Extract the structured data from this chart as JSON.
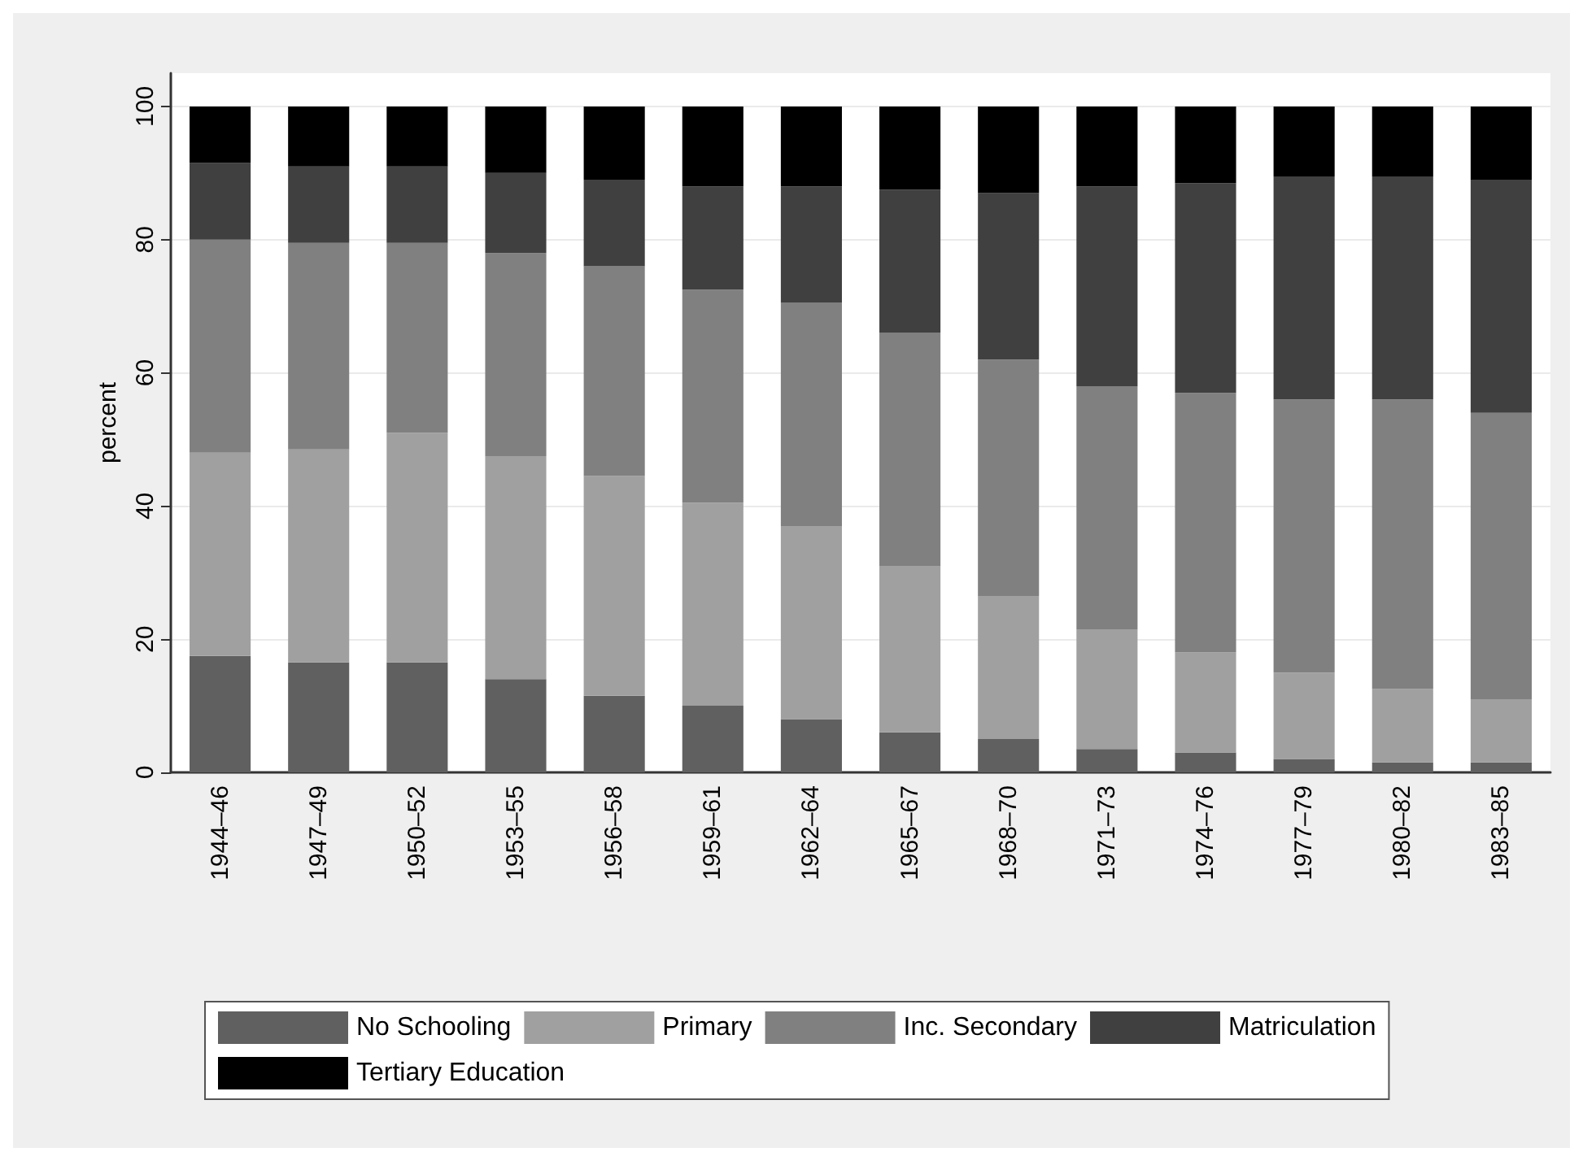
{
  "chart_data": {
    "type": "bar",
    "stacked": true,
    "ylabel": "percent",
    "categories": [
      "1944–46",
      "1947–49",
      "1950–52",
      "1953–55",
      "1956–58",
      "1959–61",
      "1962–64",
      "1965–67",
      "1968–70",
      "1971–73",
      "1974–76",
      "1977–79",
      "1980–82",
      "1983–85"
    ],
    "series": [
      {
        "name": "No Schooling",
        "color": "#606060",
        "values": [
          17.5,
          16.5,
          16.5,
          14,
          11.5,
          10,
          8,
          6,
          5,
          3.5,
          3,
          2,
          1.5,
          1.5
        ]
      },
      {
        "name": "Primary",
        "color": "#a0a0a0",
        "values": [
          30.5,
          32,
          34.5,
          33.5,
          33,
          30.5,
          29,
          25,
          21.5,
          18,
          15,
          13,
          11,
          9.5
        ]
      },
      {
        "name": "Inc. Secondary",
        "color": "#808080",
        "values": [
          32,
          31,
          28.5,
          30.5,
          31.5,
          32,
          33.5,
          35,
          35.5,
          36.5,
          39,
          41,
          43.5,
          43
        ]
      },
      {
        "name": "Matriculation",
        "color": "#404040",
        "values": [
          11.5,
          11.5,
          11.5,
          12,
          13,
          15.5,
          17.5,
          21.5,
          25,
          30,
          31.5,
          33.5,
          33.5,
          35
        ]
      },
      {
        "name": "Tertiary Education",
        "color": "#000000",
        "values": [
          8.5,
          9,
          9,
          10,
          11,
          12,
          12,
          12.5,
          13,
          12,
          11.5,
          10.5,
          10.5,
          11
        ]
      }
    ],
    "ylim": [
      0,
      105
    ],
    "yticks": [
      0,
      20,
      40,
      60,
      80,
      100
    ],
    "grid": "y",
    "legend": "bottom"
  }
}
